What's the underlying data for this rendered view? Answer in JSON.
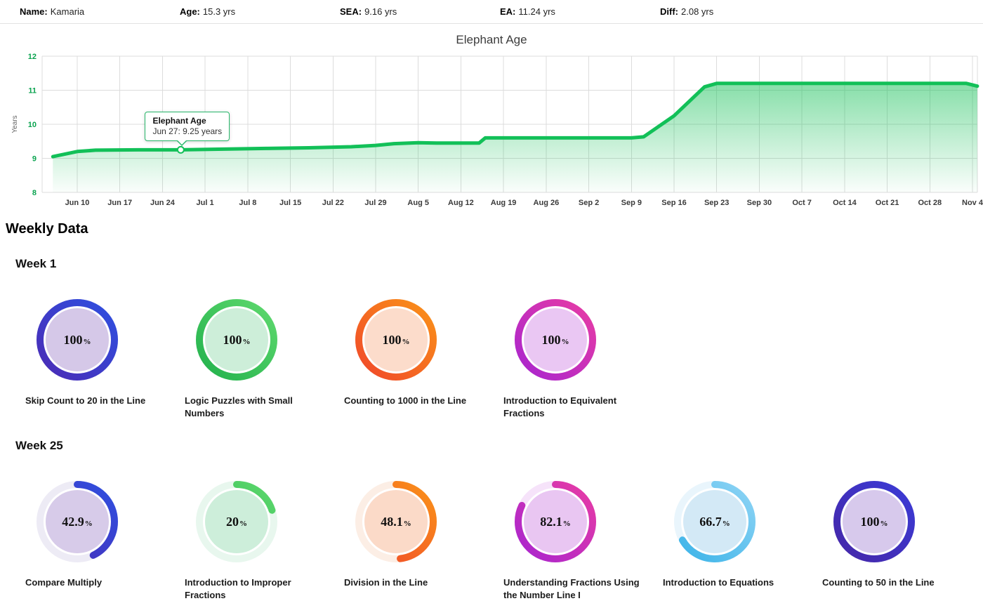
{
  "ui": {
    "percent_sign": "%"
  },
  "header": {
    "stats": [
      {
        "label": "Name:",
        "value": "Kamaria"
      },
      {
        "label": "Age:",
        "value": "15.3 yrs"
      },
      {
        "label": "SEA:",
        "value": "9.16 yrs"
      },
      {
        "label": "EA:",
        "value": "11.24 yrs"
      },
      {
        "label": "Diff:",
        "value": "2.08 yrs"
      }
    ]
  },
  "weekly": {
    "title": "Weekly Data"
  },
  "chart_data": [
    {
      "type": "area",
      "title": "Elephant Age",
      "ylabel": "Years",
      "ylim": [
        8,
        12
      ],
      "yticks": [
        8,
        9,
        10,
        11,
        12
      ],
      "xticks": [
        {
          "day": 0,
          "label": "Jun 10"
        },
        {
          "day": 7,
          "label": "Jun 17"
        },
        {
          "day": 14,
          "label": "Jun 24"
        },
        {
          "day": 21,
          "label": "Jul 1"
        },
        {
          "day": 28,
          "label": "Jul 8"
        },
        {
          "day": 35,
          "label": "Jul 15"
        },
        {
          "day": 42,
          "label": "Jul 22"
        },
        {
          "day": 49,
          "label": "Jul 29"
        },
        {
          "day": 56,
          "label": "Aug 5"
        },
        {
          "day": 63,
          "label": "Aug 12"
        },
        {
          "day": 70,
          "label": "Aug 19"
        },
        {
          "day": 77,
          "label": "Aug 26"
        },
        {
          "day": 84,
          "label": "Sep 2"
        },
        {
          "day": 91,
          "label": "Sep 9"
        },
        {
          "day": 98,
          "label": "Sep 16"
        },
        {
          "day": 105,
          "label": "Sep 23"
        },
        {
          "day": 112,
          "label": "Sep 30"
        },
        {
          "day": 119,
          "label": "Oct 7"
        },
        {
          "day": 126,
          "label": "Oct 14"
        },
        {
          "day": 133,
          "label": "Oct 21"
        },
        {
          "day": 140,
          "label": "Oct 28"
        },
        {
          "day": 147,
          "label": "Nov 4"
        }
      ],
      "line_color": "#12c058",
      "series": [
        {
          "name": "Elephant Age",
          "points": [
            [
              -4,
              9.05
            ],
            [
              0,
              9.2
            ],
            [
              3,
              9.24
            ],
            [
              10,
              9.25
            ],
            [
              17,
              9.25
            ],
            [
              24,
              9.27
            ],
            [
              31,
              9.29
            ],
            [
              38,
              9.31
            ],
            [
              45,
              9.34
            ],
            [
              49,
              9.38
            ],
            [
              52,
              9.43
            ],
            [
              56,
              9.46
            ],
            [
              59,
              9.45
            ],
            [
              66,
              9.45
            ],
            [
              67,
              9.6
            ],
            [
              73,
              9.6
            ],
            [
              80,
              9.6
            ],
            [
              87,
              9.6
            ],
            [
              91,
              9.6
            ],
            [
              93,
              9.63
            ],
            [
              98,
              10.25
            ],
            [
              103,
              11.1
            ],
            [
              105,
              11.2
            ],
            [
              112,
              11.2
            ],
            [
              119,
              11.2
            ],
            [
              126,
              11.2
            ],
            [
              133,
              11.2
            ],
            [
              140,
              11.2
            ],
            [
              146,
              11.2
            ],
            [
              147.8,
              11.12
            ]
          ]
        }
      ],
      "annotation": {
        "label": "Elephant Age",
        "text": "Jun 27: 9.25 years",
        "day": 17,
        "value": 9.25
      }
    },
    {
      "type": "donut-grid",
      "title": "Week 1",
      "items": [
        {
          "label": "Skip Count to 20 in the Line",
          "value": "100",
          "pct": 100,
          "ring": [
            "#4a2bb5",
            "#2f50e0"
          ],
          "fill": "#d5c8e8",
          "track": "#eae5f4"
        },
        {
          "label": "Logic Puzzles with Small Numbers",
          "value": "100",
          "pct": 100,
          "ring": [
            "#22b14c",
            "#5fd96e"
          ],
          "fill": "#cdeed9",
          "track": "#e4f6ea"
        },
        {
          "label": "Counting to 1000 in the Line",
          "value": "100",
          "pct": 100,
          "ring": [
            "#f0482a",
            "#fa9219"
          ],
          "fill": "#fcdccb",
          "track": "#fdeee4"
        },
        {
          "label": "Introduction to Equivalent Fractions",
          "value": "100",
          "pct": 100,
          "ring": [
            "#a825cf",
            "#e83ca4"
          ],
          "fill": "#eac7f3",
          "track": "#f6e4fa"
        }
      ]
    },
    {
      "type": "donut-grid",
      "title": "Week 25",
      "items": [
        {
          "label": "Compare Multiply",
          "value": "42.9",
          "pct": 42.9,
          "ring": [
            "#4a2bb5",
            "#2f50e0"
          ],
          "fill": "#d7cbe9",
          "track": "#edebf5"
        },
        {
          "label": "Introduction to Improper Fractions",
          "value": "20",
          "pct": 20,
          "ring": [
            "#22b14c",
            "#5fd96e"
          ],
          "fill": "#cdeeda",
          "track": "#e8f7ee"
        },
        {
          "label": "Division in the Line",
          "value": "48.1",
          "pct": 48.1,
          "ring": [
            "#f0482a",
            "#fa9219"
          ],
          "fill": "#fbdac8",
          "track": "#fceee5"
        },
        {
          "label": "Understanding Fractions Using the Number Line I",
          "value": "82.1",
          "pct": 82.1,
          "ring": [
            "#a825cf",
            "#e83ca4"
          ],
          "fill": "#e9c6f2",
          "track": "#f6e3fa"
        },
        {
          "label": "Introduction to Equations",
          "value": "66.7",
          "pct": 66.7,
          "ring": [
            "#3bb3e8",
            "#8ed4f5"
          ],
          "fill": "#d3e9f6",
          "track": "#e9f5fc"
        },
        {
          "label": "Counting to 50 in the Line",
          "value": "100",
          "pct": 100,
          "ring": [
            "#4527a8",
            "#3b3bd6"
          ],
          "fill": "#d7c9ec",
          "track": "#ece6f6"
        }
      ]
    }
  ]
}
